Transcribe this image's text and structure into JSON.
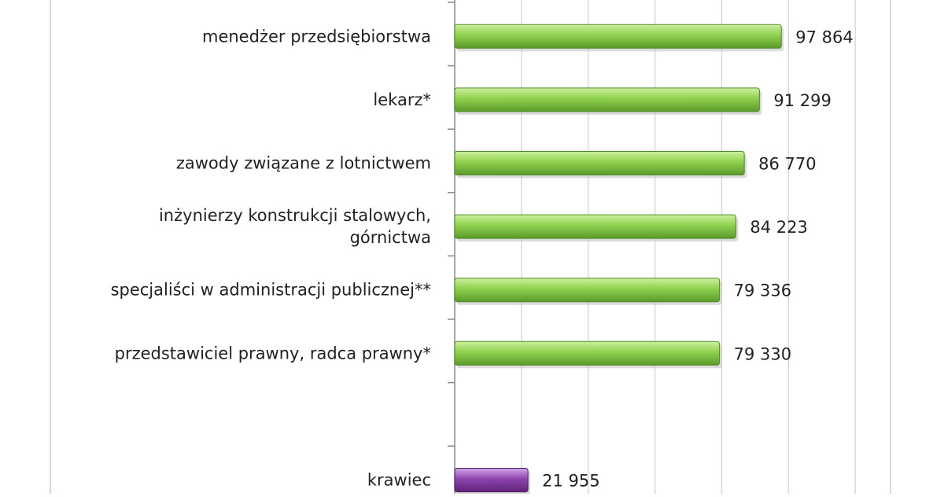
{
  "chart_data": {
    "type": "bar",
    "orientation": "horizontal",
    "title": "",
    "xlabel": "",
    "ylabel": "",
    "grid": true,
    "legend": "none",
    "xlim": [
      0,
      140000
    ],
    "gridlines": [
      0,
      20000,
      40000,
      60000,
      80000,
      100000,
      120000
    ],
    "categories": [
      "menedżer przedsiębiorstwa",
      "lekarz*",
      "zawody związane  z lotnictwem",
      "inżynierzy konstrukcji stalowych,\ngórnictwa",
      "specjaliści w administracji publicznej**",
      "przedstawiciel prawny, radca prawny*",
      "",
      "krawiec"
    ],
    "values": [
      97864,
      91299,
      86770,
      84223,
      79336,
      79330,
      null,
      21955
    ],
    "data_labels": [
      "97 864",
      "91 299",
      "86 770",
      "84 223",
      "79 336",
      "79 330",
      "",
      "21 955"
    ],
    "bar_colors": [
      "#8fd14f",
      "#8fd14f",
      "#8fd14f",
      "#8fd14f",
      "#8fd14f",
      "#8fd14f",
      "",
      "#8e44ad"
    ]
  },
  "colors": {
    "background": "#ffffff",
    "axis": "#888888",
    "grid": "#d9d9d9",
    "frame": "#cccccc",
    "label_text": "#222222"
  }
}
